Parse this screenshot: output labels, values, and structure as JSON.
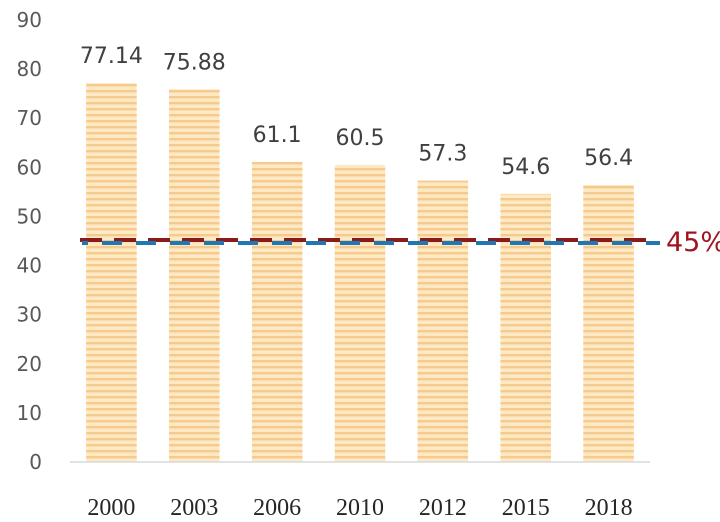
{
  "chart_data": {
    "type": "bar",
    "categories": [
      "2000",
      "2003",
      "2006",
      "2010",
      "2012",
      "2015",
      "2018"
    ],
    "values": [
      77.14,
      75.88,
      61.1,
      60.5,
      57.3,
      54.6,
      56.4
    ],
    "data_labels": [
      "77.14",
      "75.88",
      "61.1",
      "60.5",
      "57.3",
      "54.6",
      "56.4"
    ],
    "ylim": [
      0,
      90
    ],
    "y_ticks": [
      0,
      10,
      20,
      30,
      40,
      50,
      60,
      70,
      80,
      90
    ],
    "grid": false,
    "reference_line": {
      "value": 45,
      "label": "45%"
    },
    "colors": {
      "bar_fill": "#fde9c4",
      "bar_stripe": "#f6c98d",
      "axis": "#d9d9d9",
      "ref_red": "#8b1a1a",
      "ref_blue": "#1f77b4",
      "ref_label": "#a0141e"
    }
  }
}
